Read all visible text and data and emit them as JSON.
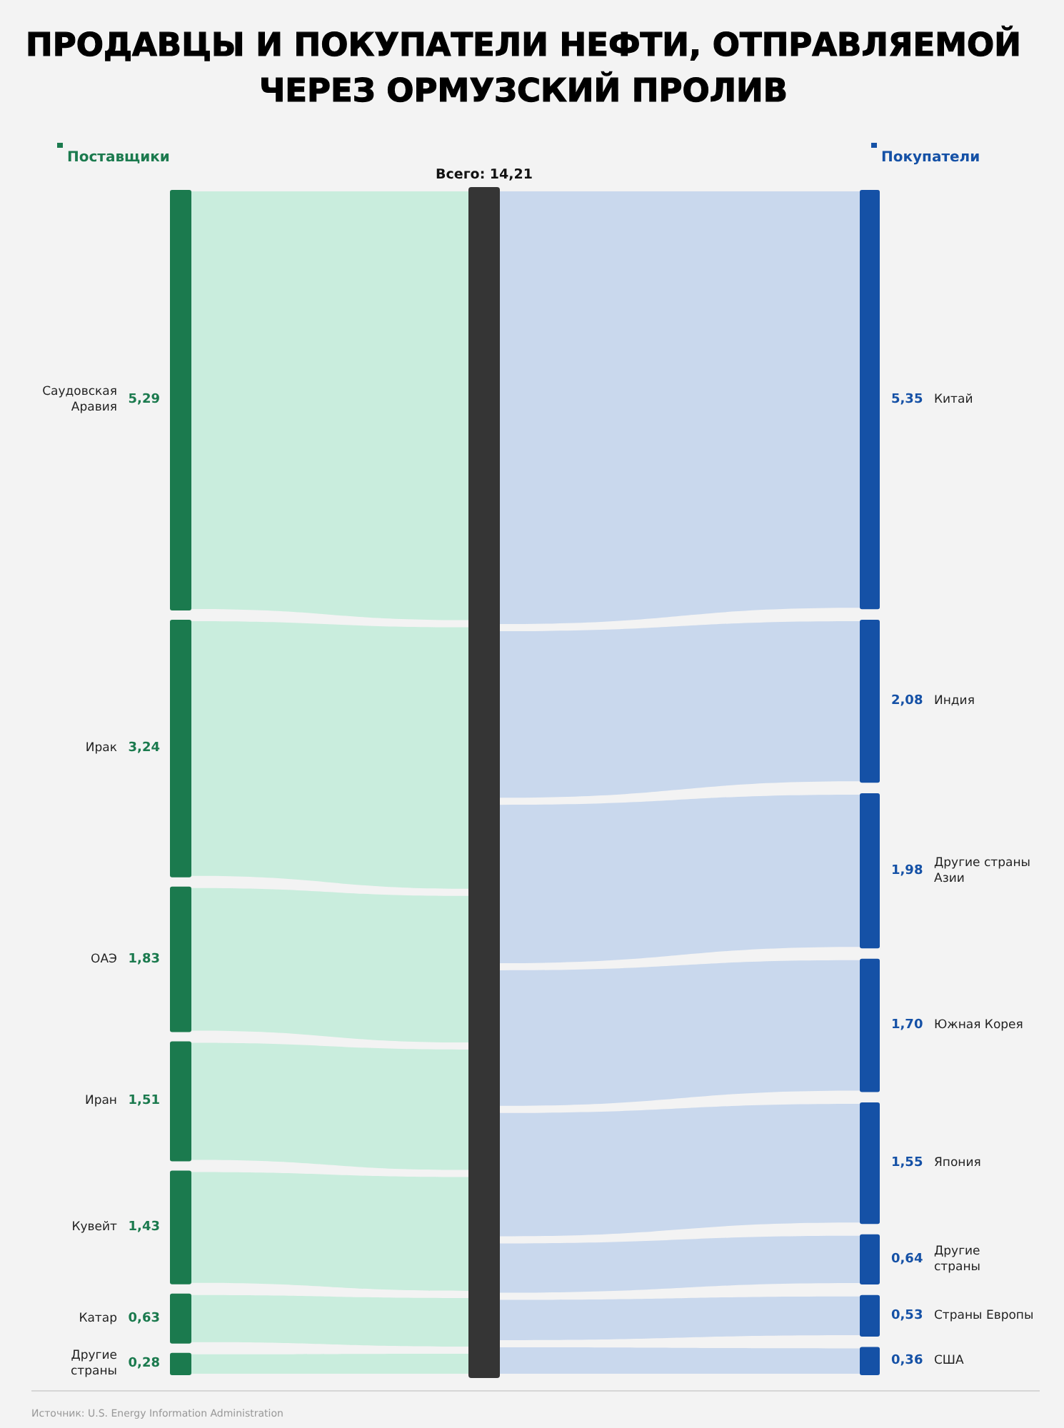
{
  "chart_data": {
    "type": "other",
    "title": "ПРОДАВЦЫ И ПОКУПАТЕЛИ НЕФТИ, ОТПРАВЛЯЕМОЙ\nЧЕРЕЗ ОРМУЗСКИЙ ПРОЛИВ",
    "categories": [
      "Саудовская\nАравия",
      "Ирак",
      "ОАЭ",
      "Иран",
      "Кувейт",
      "Катар",
      "Другие\nстраны",
      "Китай",
      "Индия",
      "Другие страны\nАзии",
      "Южная Корея",
      "Япония",
      "Другие\nстраны",
      "Страны Европы",
      "США"
    ],
    "series": [
      {
        "name": "Поставщики",
        "color": "#1b7a4e",
        "values": [
          5.29,
          3.24,
          1.83,
          1.51,
          1.43,
          0.63,
          0.28,
          null,
          null,
          null,
          null,
          null,
          null,
          null,
          null
        ],
        "value_labels": [
          "5,29",
          "3,24",
          "1,83",
          "1,51",
          "1,43",
          "0,63",
          "0,28",
          null,
          null,
          null,
          null,
          null,
          null,
          null,
          null
        ]
      },
      {
        "name": "Покупатели",
        "color": "#1551a6",
        "values": [
          null,
          null,
          null,
          null,
          null,
          null,
          null,
          5.35,
          2.08,
          1.98,
          1.7,
          1.55,
          0.64,
          0.53,
          0.36
        ],
        "value_labels": [
          null,
          null,
          null,
          null,
          null,
          null,
          null,
          "5,35",
          "2,08",
          "1,98",
          "1,70",
          "1,55",
          "0,64",
          "0,53",
          "0,36"
        ]
      }
    ],
    "annotations": [
      "Всего: 14,21",
      "Источник: U.S. Energy Information Administration"
    ]
  }
}
